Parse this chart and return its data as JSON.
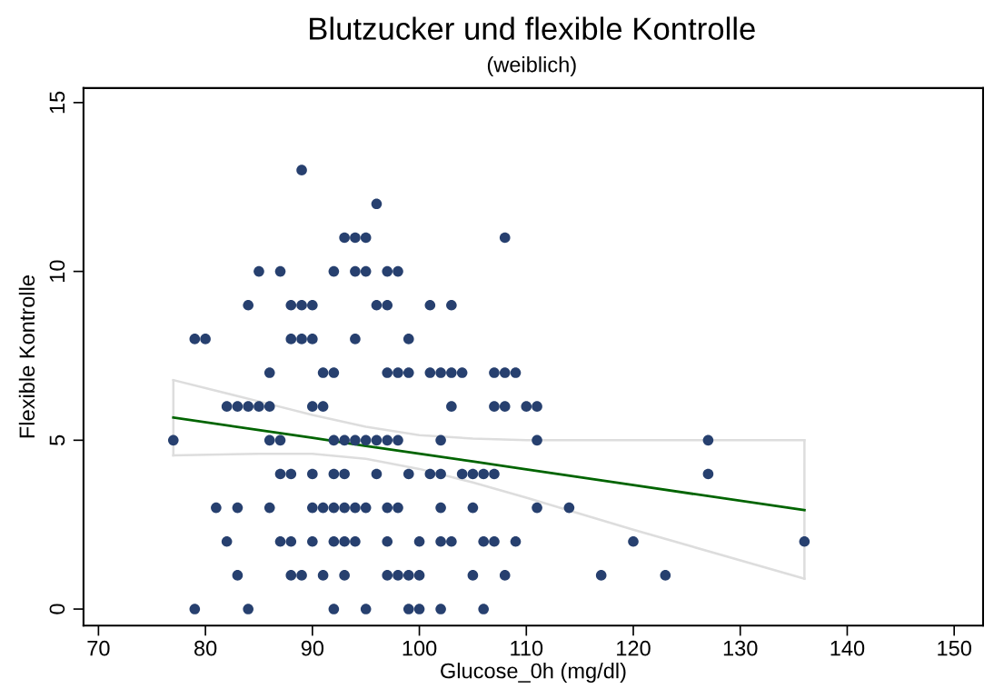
{
  "chart_data": {
    "type": "scatter",
    "title": "Blutzucker und flexible Kontrolle",
    "subtitle": "(weiblich)",
    "xlabel": "Glucose_0h (mg/dl)",
    "ylabel": "Flexible Kontrolle",
    "xlim": [
      68.6,
      152.7
    ],
    "ylim": [
      -0.49,
      15.43
    ],
    "xticks": [
      70,
      80,
      90,
      100,
      110,
      120,
      130,
      140,
      150
    ],
    "yticks": [
      0,
      5,
      10,
      15
    ],
    "grid": false,
    "legend": false,
    "series": [
      {
        "type": "scatter",
        "marker": "circle",
        "color": "#27406f",
        "x": [
          89,
          96,
          93,
          94,
          95,
          108,
          85,
          87,
          92,
          94,
          95,
          97,
          98,
          84,
          88,
          89,
          90,
          96,
          97,
          101,
          103,
          79,
          80,
          88,
          89,
          90,
          94,
          99,
          86,
          91,
          92,
          97,
          98,
          99,
          101,
          102,
          103,
          104,
          107,
          108,
          109,
          82,
          83,
          84,
          85,
          86,
          90,
          91,
          103,
          107,
          108,
          110,
          111,
          77,
          86,
          87,
          92,
          93,
          94,
          95,
          96,
          97,
          98,
          102,
          111,
          127,
          87,
          88,
          90,
          92,
          93,
          96,
          99,
          101,
          102,
          104,
          105,
          106,
          107,
          127,
          81,
          83,
          86,
          90,
          91,
          92,
          93,
          94,
          95,
          97,
          98,
          102,
          105,
          111,
          114,
          82,
          87,
          88,
          90,
          92,
          93,
          94,
          97,
          100,
          102,
          103,
          106,
          107,
          109,
          120,
          136,
          83,
          88,
          89,
          91,
          93,
          97,
          98,
          99,
          100,
          105,
          108,
          117,
          123,
          79,
          84,
          92,
          95,
          99,
          100,
          102,
          106
        ],
        "values": [
          13,
          12,
          11,
          11,
          11,
          11,
          10,
          10,
          10,
          10,
          10,
          10,
          10,
          9,
          9,
          9,
          9,
          9,
          9,
          9,
          9,
          8,
          8,
          8,
          8,
          8,
          8,
          8,
          7,
          7,
          7,
          7,
          7,
          7,
          7,
          7,
          7,
          7,
          7,
          7,
          7,
          6,
          6,
          6,
          6,
          6,
          6,
          6,
          6,
          6,
          6,
          6,
          6,
          5,
          5,
          5,
          5,
          5,
          5,
          5,
          5,
          5,
          5,
          5,
          5,
          5,
          4,
          4,
          4,
          4,
          4,
          4,
          4,
          4,
          4,
          4,
          4,
          4,
          4,
          4,
          3,
          3,
          3,
          3,
          3,
          3,
          3,
          3,
          3,
          3,
          3,
          3,
          3,
          3,
          3,
          2,
          2,
          2,
          2,
          2,
          2,
          2,
          2,
          2,
          2,
          2,
          2,
          2,
          2,
          2,
          2,
          1,
          1,
          1,
          1,
          1,
          1,
          1,
          1,
          1,
          1,
          1,
          1,
          1,
          0,
          0,
          0,
          0,
          0,
          0,
          0,
          0
        ]
      },
      {
        "type": "line",
        "color": "#006400",
        "x": [
          77,
          85,
          90,
          95,
          100,
          105,
          110,
          120,
          136
        ],
        "values": [
          5.67,
          5.3,
          5.07,
          4.83,
          4.6,
          4.37,
          4.14,
          3.67,
          2.93
        ]
      },
      {
        "type": "line",
        "color": "#dddddd",
        "x": [
          77,
          85,
          90,
          95,
          100,
          105,
          110,
          120,
          136
        ],
        "values": [
          6.78,
          6.15,
          5.75,
          5.4,
          5.15,
          5.05,
          5.0,
          5.0,
          5.0
        ]
      },
      {
        "type": "line",
        "color": "#dddddd",
        "x": [
          77,
          85,
          90,
          95,
          100,
          105,
          110,
          120,
          136
        ],
        "values": [
          4.55,
          4.6,
          4.6,
          4.45,
          4.15,
          3.75,
          3.3,
          2.35,
          0.9
        ]
      },
      {
        "type": "line",
        "color": "#dddddd",
        "x": [
          77,
          77
        ],
        "values": [
          4.55,
          6.78
        ]
      },
      {
        "type": "line",
        "color": "#dddddd",
        "x": [
          136,
          136
        ],
        "values": [
          0.9,
          5.0
        ]
      }
    ]
  }
}
